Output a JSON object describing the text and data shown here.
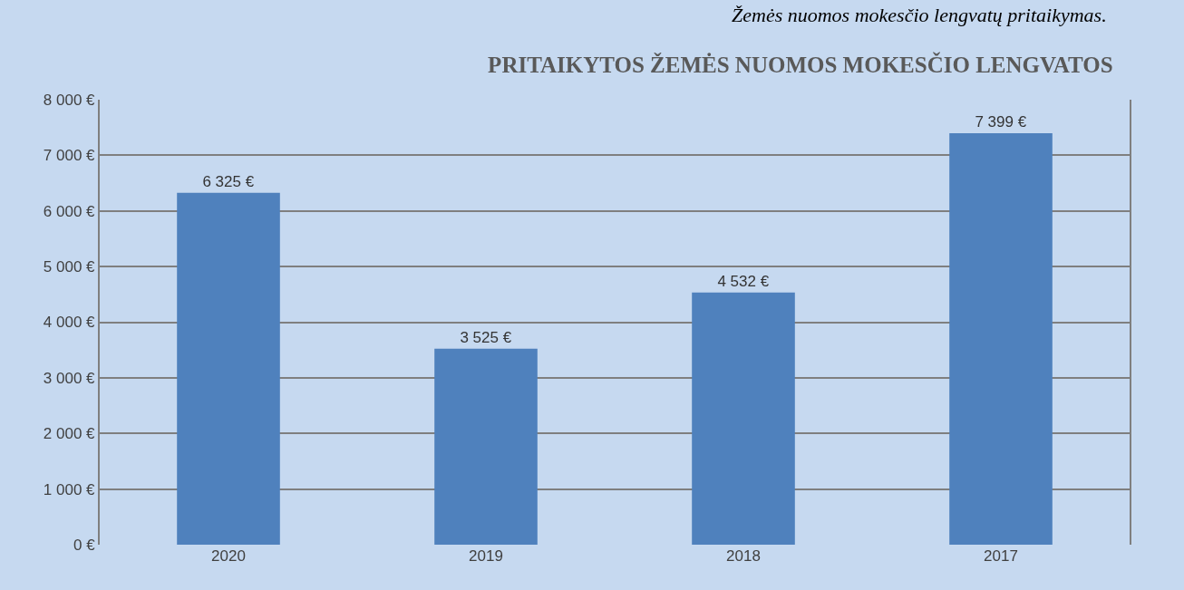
{
  "chart_data": {
    "type": "bar",
    "title": "PRITAIKYTOS ŽEMĖS NUOMOS MOKESČIO LENGVATOS",
    "annotations": [
      "Žemės nuomos mokesčio lengvatų pritaikymas."
    ],
    "categories": [
      "2020",
      "2019",
      "2018",
      "2017"
    ],
    "values": [
      6325,
      3525,
      4532,
      7399
    ],
    "value_labels": [
      "6 325 €",
      "3 525 €",
      "4 532 €",
      "7 399 €"
    ],
    "color": "#4f81bd",
    "ylim": [
      0,
      8000
    ],
    "yticks": [
      {
        "value": 0,
        "label": "0 €"
      },
      {
        "value": 1000,
        "label": "1 000 €"
      },
      {
        "value": 2000,
        "label": "2 000 €"
      },
      {
        "value": 3000,
        "label": "3 000 €"
      },
      {
        "value": 4000,
        "label": "4 000 €"
      },
      {
        "value": 5000,
        "label": "5 000 €"
      },
      {
        "value": 6000,
        "label": "6 000 €"
      },
      {
        "value": 7000,
        "label": "7 000 €"
      },
      {
        "value": 8000,
        "label": "8 000 €"
      }
    ],
    "grid": "y",
    "legend": false
  }
}
